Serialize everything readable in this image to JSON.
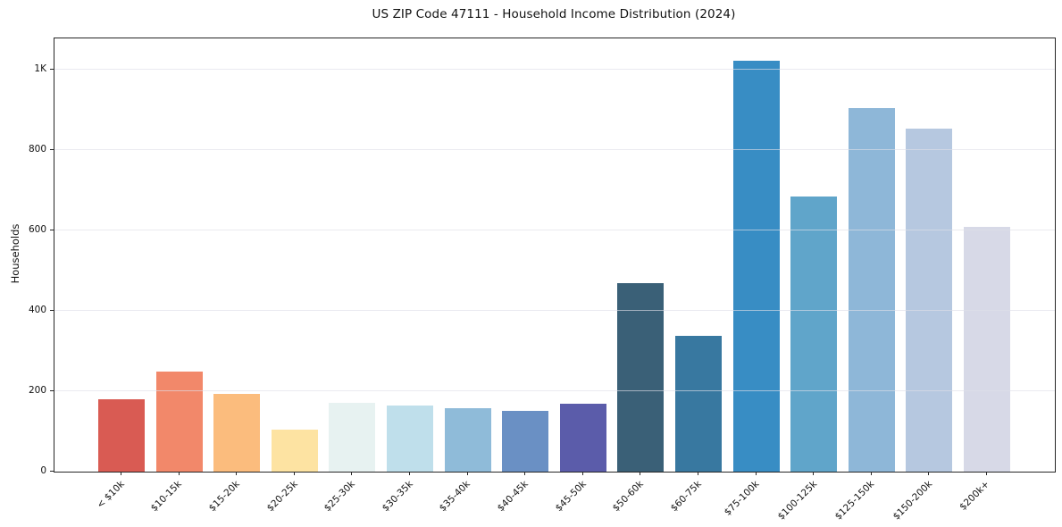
{
  "chart_data": {
    "type": "bar",
    "title": "US ZIP Code 47111 - Household Income Distribution (2024)",
    "xlabel": "",
    "ylabel": "Households",
    "categories": [
      "< $10k",
      "$10-15k",
      "$15-20k",
      "$20-25k",
      "$25-30k",
      "$30-35k",
      "$35-40k",
      "$40-45k",
      "$45-50k",
      "$50-60k",
      "$60-75k",
      "$75-100k",
      "$100-125k",
      "$125-150k",
      "$150-200k",
      "$200k+"
    ],
    "values": [
      181,
      248,
      193,
      104,
      172,
      164,
      157,
      152,
      170,
      470,
      338,
      1023,
      684,
      905,
      854,
      610
    ],
    "bar_colors": [
      "#d95b53",
      "#f2886a",
      "#fbbc7d",
      "#fde3a2",
      "#e7f2f1",
      "#bfdfeb",
      "#8fbbd9",
      "#6a90c4",
      "#5b5caa",
      "#3a6077",
      "#3878a0",
      "#388dc4",
      "#60a5ca",
      "#8eb7d8",
      "#b6c8e0",
      "#d7d9e7"
    ],
    "y_ticks": [
      {
        "value": 0,
        "label": "0"
      },
      {
        "value": 200,
        "label": "200"
      },
      {
        "value": 400,
        "label": "400"
      },
      {
        "value": 600,
        "label": "600"
      },
      {
        "value": 800,
        "label": "800"
      },
      {
        "value": 1000,
        "label": "1K"
      }
    ],
    "ylim": [
      0,
      1078
    ],
    "x_tick_rotation": 45,
    "grid": "horizontal gridlines at y ticks, light gray, drawn over bars",
    "legend": "none",
    "spine_color": "#262626"
  }
}
